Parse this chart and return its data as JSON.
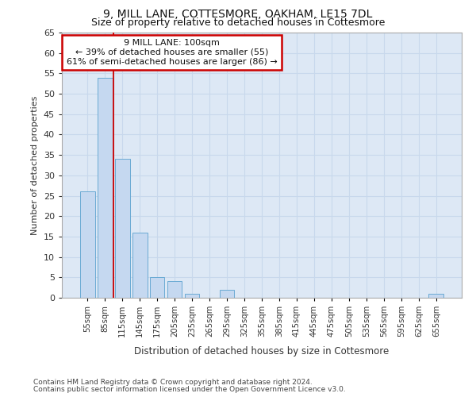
{
  "title1": "9, MILL LANE, COTTESMORE, OAKHAM, LE15 7DL",
  "title2": "Size of property relative to detached houses in Cottesmore",
  "xlabel": "Distribution of detached houses by size in Cottesmore",
  "ylabel": "Number of detached properties",
  "annotation_title": "9 MILL LANE: 100sqm",
  "annotation_line1": "← 39% of detached houses are smaller (55)",
  "annotation_line2": "61% of semi-detached houses are larger (86) →",
  "footer1": "Contains HM Land Registry data © Crown copyright and database right 2024.",
  "footer2": "Contains public sector information licensed under the Open Government Licence v3.0.",
  "categories": [
    "55sqm",
    "85sqm",
    "115sqm",
    "145sqm",
    "175sqm",
    "205sqm",
    "235sqm",
    "265sqm",
    "295sqm",
    "325sqm",
    "355sqm",
    "385sqm",
    "415sqm",
    "445sqm",
    "475sqm",
    "505sqm",
    "535sqm",
    "565sqm",
    "595sqm",
    "625sqm",
    "655sqm"
  ],
  "values": [
    26,
    54,
    34,
    16,
    5,
    4,
    1,
    0,
    2,
    0,
    0,
    0,
    0,
    0,
    0,
    0,
    0,
    0,
    0,
    0,
    1
  ],
  "bar_color": "#c5d8f0",
  "bar_edge_color": "#6aaad4",
  "ref_line_color": "#cc0000",
  "annotation_box_color": "#ffffff",
  "annotation_box_edge": "#cc0000",
  "ylim": [
    0,
    65
  ],
  "yticks": [
    0,
    5,
    10,
    15,
    20,
    25,
    30,
    35,
    40,
    45,
    50,
    55,
    60,
    65
  ],
  "grid_color": "#c8d8ec",
  "bg_color": "#ffffff",
  "plot_bg_color": "#dde8f5"
}
